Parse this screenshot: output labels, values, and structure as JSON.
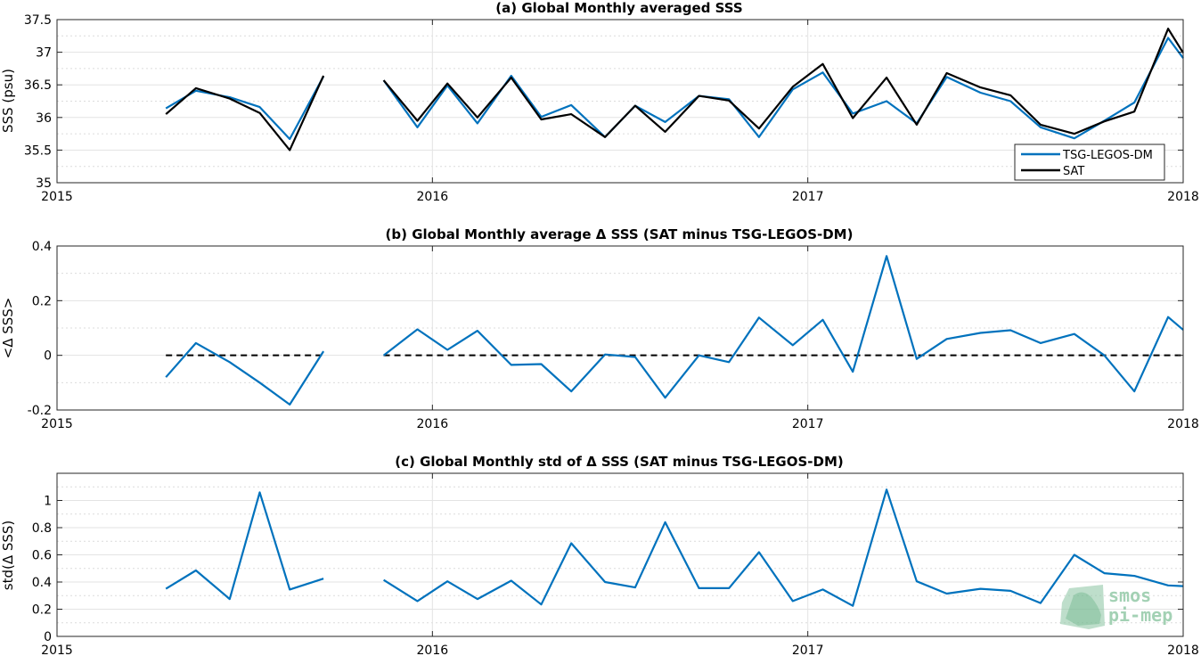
{
  "colors": {
    "tsg": "#0072bd",
    "sat": "#000000",
    "logo": "#93c9a8"
  },
  "logo": {
    "line1": "smos",
    "line2": "pi-mep"
  },
  "chart_data": [
    {
      "type": "line",
      "title": "(a) Global Monthly averaged SSS",
      "ylabel": "SSS (psu)",
      "xlim": [
        2015,
        2018
      ],
      "ylim": [
        35,
        37.5
      ],
      "xticks": [
        2015,
        2016,
        2017,
        2018
      ],
      "xtick_labels": [
        "2015",
        "2016",
        "2017",
        "2018"
      ],
      "yticks": [
        35,
        35.5,
        36,
        36.5,
        37,
        37.5
      ],
      "ytick_labels": [
        "35",
        "35.5",
        "36",
        "36.5",
        "37",
        "37.5"
      ],
      "grid": true,
      "legend_position": "bottom-right",
      "series": [
        {
          "name": "TSG-LEGOS-DM",
          "color_key": "tsg",
          "segments": [
            {
              "x": [
                2015.29,
                2015.37,
                2015.46,
                2015.54,
                2015.62,
                2015.71
              ],
              "y": [
                36.14,
                36.41,
                36.31,
                36.16,
                35.67,
                36.63
              ]
            },
            {
              "x": [
                2015.87,
                2015.96,
                2016.04,
                2016.12,
                2016.21,
                2016.29,
                2016.37,
                2016.46,
                2016.54,
                2016.62,
                2016.71,
                2016.79,
                2016.87,
                2016.96,
                2017.04,
                2017.12,
                2017.21,
                2017.29,
                2017.37,
                2017.46,
                2017.54,
                2017.62,
                2017.71,
                2017.79,
                2017.87,
                2017.96,
                2018.0
              ],
              "y": [
                36.57,
                35.85,
                36.49,
                35.91,
                36.64,
                36.01,
                36.19,
                35.7,
                36.18,
                35.93,
                36.33,
                36.28,
                35.7,
                36.43,
                36.69,
                36.06,
                36.25,
                35.91,
                36.62,
                36.38,
                36.25,
                35.85,
                35.68,
                35.95,
                36.23,
                37.22,
                36.91
              ]
            }
          ]
        },
        {
          "name": "SAT",
          "color_key": "sat",
          "segments": [
            {
              "x": [
                2015.29,
                2015.37,
                2015.46,
                2015.54,
                2015.62,
                2015.71
              ],
              "y": [
                36.05,
                36.45,
                36.29,
                36.07,
                35.5,
                36.64
              ]
            },
            {
              "x": [
                2015.87,
                2015.96,
                2016.04,
                2016.12,
                2016.21,
                2016.29,
                2016.37,
                2016.46,
                2016.54,
                2016.62,
                2016.71,
                2016.79,
                2016.87,
                2016.96,
                2017.04,
                2017.12,
                2017.21,
                2017.29,
                2017.37,
                2017.46,
                2017.54,
                2017.62,
                2017.71,
                2017.79,
                2017.87,
                2017.96,
                2018.0
              ],
              "y": [
                36.57,
                35.95,
                36.52,
                36.0,
                36.61,
                35.97,
                36.05,
                35.7,
                36.18,
                35.78,
                36.33,
                36.26,
                35.83,
                36.47,
                36.82,
                35.99,
                36.61,
                35.89,
                36.68,
                36.46,
                36.34,
                35.89,
                35.75,
                35.94,
                36.09,
                37.36,
                36.99
              ]
            }
          ]
        }
      ]
    },
    {
      "type": "line",
      "title": "(b) Global Monthly average Δ SSS (SAT minus TSG-LEGOS-DM)",
      "ylabel": "<Δ SSS>",
      "xlim": [
        2015,
        2018
      ],
      "ylim": [
        -0.2,
        0.4
      ],
      "xticks": [
        2015,
        2016,
        2017,
        2018
      ],
      "xtick_labels": [
        "2015",
        "2016",
        "2017",
        "2018"
      ],
      "yticks": [
        -0.2,
        0,
        0.2,
        0.4
      ],
      "ytick_labels": [
        "-0.2",
        "0",
        "0.2",
        "0.4"
      ],
      "grid": true,
      "reference_line": {
        "y": 0,
        "segments": [
          [
            2015.29,
            2015.71
          ],
          [
            2015.87,
            2018.0
          ]
        ]
      },
      "series": [
        {
          "name": "",
          "color_key": "tsg",
          "segments": [
            {
              "x": [
                2015.29,
                2015.37,
                2015.46,
                2015.54,
                2015.62,
                2015.71
              ],
              "y": [
                -0.08,
                0.045,
                -0.025,
                -0.1,
                -0.18,
                0.015
              ]
            },
            {
              "x": [
                2015.87,
                2015.96,
                2016.04,
                2016.12,
                2016.21,
                2016.29,
                2016.37,
                2016.46,
                2016.54,
                2016.62,
                2016.71,
                2016.79,
                2016.87,
                2016.96,
                2017.04,
                2017.12,
                2017.21,
                2017.29,
                2017.37,
                2017.46,
                2017.54,
                2017.62,
                2017.71,
                2017.79,
                2017.87,
                2017.96,
                2018.0
              ],
              "y": [
                0.0,
                0.095,
                0.02,
                0.09,
                -0.035,
                -0.032,
                -0.132,
                0.003,
                -0.006,
                -0.155,
                0.0,
                -0.025,
                0.138,
                0.037,
                0.13,
                -0.06,
                0.363,
                -0.013,
                0.06,
                0.082,
                0.092,
                0.045,
                0.078,
                0.0,
                -0.132,
                0.14,
                0.093
              ]
            }
          ]
        }
      ]
    },
    {
      "type": "line",
      "title": "(c) Global Monthly std of Δ SSS (SAT minus TSG-LEGOS-DM)",
      "ylabel": "std(Δ SSS)",
      "xlim": [
        2015,
        2018
      ],
      "ylim": [
        0,
        1.2
      ],
      "xticks": [
        2015,
        2016,
        2017,
        2018
      ],
      "xtick_labels": [
        "2015",
        "2016",
        "2017",
        "2018"
      ],
      "yticks": [
        0,
        0.2,
        0.4,
        0.6,
        0.8,
        1
      ],
      "ytick_labels": [
        "0",
        "0.2",
        "0.4",
        "0.6",
        "0.8",
        "1"
      ],
      "grid": true,
      "series": [
        {
          "name": "",
          "color_key": "tsg",
          "segments": [
            {
              "x": [
                2015.29,
                2015.37,
                2015.46,
                2015.54,
                2015.62,
                2015.71
              ],
              "y": [
                0.35,
                0.485,
                0.275,
                1.06,
                0.345,
                0.425
              ]
            },
            {
              "x": [
                2015.87,
                2015.96,
                2016.04,
                2016.12,
                2016.21,
                2016.29,
                2016.37,
                2016.46,
                2016.54,
                2016.62,
                2016.71,
                2016.79,
                2016.87,
                2016.96,
                2017.04,
                2017.12,
                2017.21,
                2017.29,
                2017.37,
                2017.46,
                2017.54,
                2017.62,
                2017.71,
                2017.79,
                2017.87,
                2017.96,
                2018.0
              ],
              "y": [
                0.415,
                0.26,
                0.405,
                0.275,
                0.41,
                0.235,
                0.685,
                0.4,
                0.36,
                0.84,
                0.355,
                0.355,
                0.62,
                0.26,
                0.345,
                0.225,
                1.08,
                0.405,
                0.315,
                0.35,
                0.335,
                0.245,
                0.6,
                0.465,
                0.445,
                0.375,
                0.37
              ]
            }
          ]
        }
      ]
    }
  ]
}
